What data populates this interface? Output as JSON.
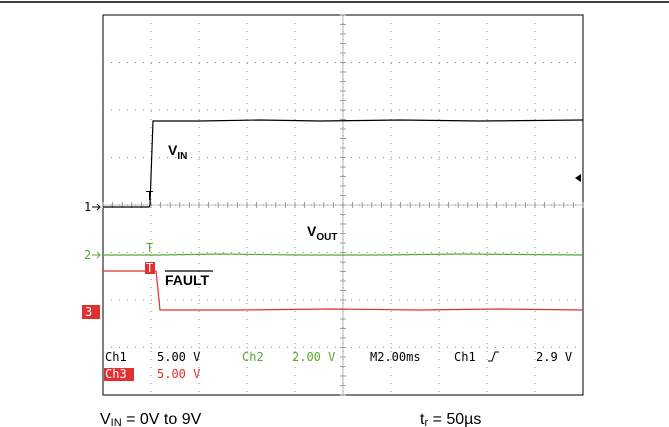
{
  "traces": {
    "vin": {
      "main": "V",
      "sub": "IN"
    },
    "vout": {
      "main": "V",
      "sub": "OUT"
    },
    "fault": "FAULT"
  },
  "markers": {
    "ch1": "1",
    "ch2": "2",
    "ch3": "3",
    "trigger": "T"
  },
  "status": {
    "ch1": {
      "name": "Ch1",
      "scale": "5.00 V"
    },
    "ch2": {
      "name": "Ch2",
      "scale": "2.00 V"
    },
    "ch3": {
      "name": "Ch3",
      "scale": "5.00 V"
    },
    "timebase": "M2.00ms",
    "trigger_source": "Ch1",
    "trigger_level": "2.9 V"
  },
  "caption": {
    "left": {
      "main": "V",
      "sub": "IN",
      "rest": " = 0V to 9V"
    },
    "right": {
      "main": "t",
      "sub": "r",
      "rest": " = 50µs"
    }
  }
}
